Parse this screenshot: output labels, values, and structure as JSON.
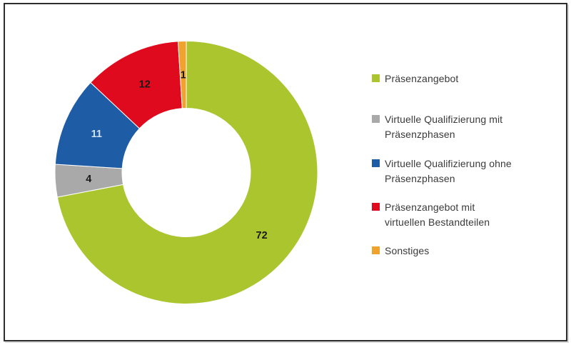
{
  "figure": {
    "background_color": "#ffffff",
    "border_color": "#2e2e2e",
    "title": ""
  },
  "chart_data": {
    "type": "pie",
    "subtype": "donut",
    "title": "",
    "categories": [
      "Präsenzangebot",
      "Virtuelle Qualifizierung mit Präsenzphasen",
      "Virtuelle Qualifizierung ohne Präsenzphasen",
      "Präsenzangebot mit virtuellen Bestandteilen",
      "Sonstiges"
    ],
    "values": [
      72,
      4,
      11,
      12,
      1
    ],
    "colors": [
      "#abc52f",
      "#a9a9a9",
      "#1e5ca5",
      "#e00a1e",
      "#f0a22e"
    ],
    "data_labels": [
      "72",
      "4",
      "11",
      "12",
      "1"
    ],
    "data_label_colors": [
      "#1a1a1a",
      "#1a1a1a",
      "#cfe1f2",
      "#1a1a1a",
      "#1a1a1a"
    ],
    "start_angle_deg": 0,
    "direction": "clockwise",
    "inner_radius_ratio": 0.49,
    "legend_position": "right",
    "grid": false
  },
  "legend": {
    "items": [
      {
        "label": "Präsenzangebot",
        "lines": [
          "Präsenzangebot"
        ],
        "color": "#abc52f"
      },
      {
        "label": "Virtuelle Qualifizierung mit Präsenzphasen",
        "lines": [
          "Virtuelle Qualifizierung mit",
          "Präsenzphasen"
        ],
        "color": "#a9a9a9"
      },
      {
        "label": "Virtuelle Qualifizierung ohne Präsenzphasen",
        "lines": [
          "Virtuelle Qualifizierung ohne",
          "Präsenzphasen"
        ],
        "color": "#1e5ca5"
      },
      {
        "label": "Präsenzangebot mit virtuellen Bestandteilen",
        "lines": [
          "Präsenzangebot mit",
          "virtuellen Bestandteilen"
        ],
        "color": "#e00a1e"
      },
      {
        "label": "Sonstiges",
        "lines": [
          "Sonstiges"
        ],
        "color": "#f0a22e"
      }
    ]
  }
}
